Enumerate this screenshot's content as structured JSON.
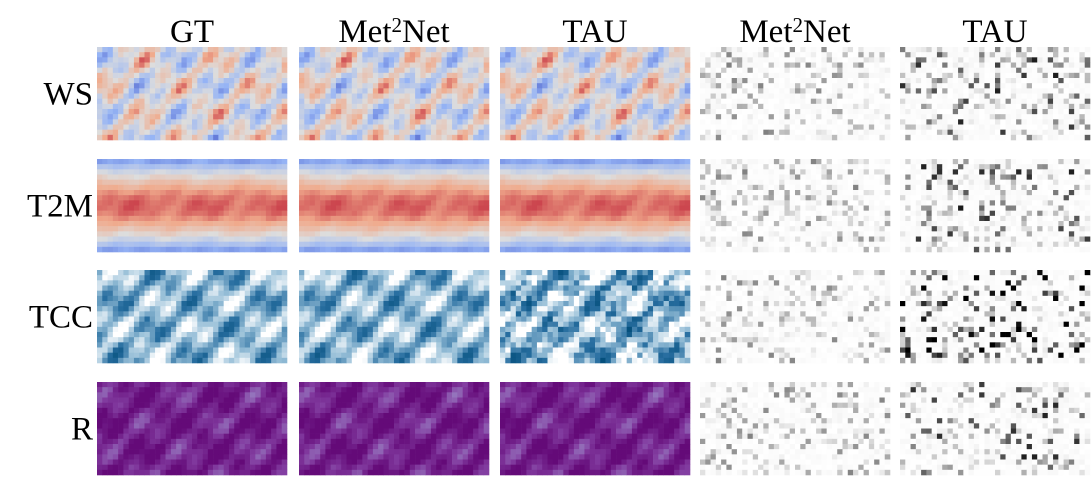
{
  "columns": [
    {
      "text": "GT"
    },
    {
      "parts": [
        "Met",
        "2",
        "Net"
      ]
    },
    {
      "text": "TAU"
    },
    {
      "parts": [
        "Met",
        "2",
        "Net"
      ]
    },
    {
      "text": "TAU"
    }
  ],
  "rows": [
    "WS",
    "T2M",
    "TCC",
    "R"
  ]
}
